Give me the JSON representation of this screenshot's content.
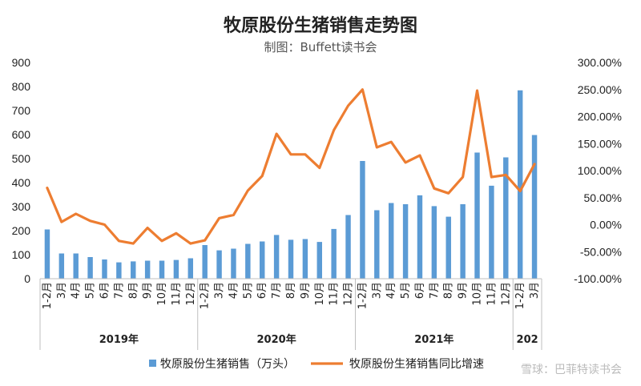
{
  "header": {
    "title": "牧原股份生猪销售走势图",
    "subtitle": "制图：Buffett读书会"
  },
  "watermark": "雪球：巴菲特读书会",
  "chart_data": {
    "type": "bar+line",
    "categories": [
      "1-2月",
      "3月",
      "4月",
      "5月",
      "6月",
      "7月",
      "8月",
      "9月",
      "10月",
      "11月",
      "12月",
      "1-2月",
      "3月",
      "4月",
      "5月",
      "6月",
      "7月",
      "8月",
      "9月",
      "10月",
      "11月",
      "12月",
      "1-2月",
      "3月",
      "4月",
      "5月",
      "6月",
      "7月",
      "8月",
      "9月",
      "10月",
      "11月",
      "12月",
      "1-2月",
      "3月"
    ],
    "year_groups": [
      {
        "label": "2019年",
        "start": 0,
        "end": 10
      },
      {
        "label": "2020年",
        "start": 11,
        "end": 21
      },
      {
        "label": "2021年",
        "start": 22,
        "end": 32
      },
      {
        "label": "202",
        "start": 33,
        "end": 34
      }
    ],
    "series": [
      {
        "name": "牧原股份生猪销售（万头）",
        "type": "bar",
        "axis": "left",
        "color": "#5b9bd5",
        "values": [
          205,
          105,
          105,
          90,
          80,
          68,
          72,
          75,
          75,
          78,
          85,
          140,
          118,
          125,
          145,
          155,
          182,
          162,
          165,
          153,
          207,
          265,
          490,
          285,
          315,
          310,
          347,
          302,
          258,
          310,
          525,
          387,
          505,
          784,
          598
        ]
      },
      {
        "name": "牧原股份生猪销售同比增速",
        "type": "line",
        "axis": "right",
        "color": "#ed7d31",
        "values": [
          68,
          5,
          20,
          7,
          0,
          -30,
          -35,
          -6,
          -30,
          -16,
          -35,
          -29,
          12,
          18,
          63,
          90,
          168,
          130,
          130,
          105,
          175,
          220,
          250,
          143,
          153,
          115,
          128,
          67,
          58,
          88,
          248,
          88,
          92,
          62,
          112
        ]
      }
    ],
    "y_left": {
      "min": 0,
      "max": 900,
      "ticks": [
        "0",
        "100",
        "200",
        "300",
        "400",
        "500",
        "600",
        "700",
        "800",
        "900"
      ]
    },
    "y_right": {
      "min": -100,
      "max": 300,
      "ticks": [
        "-100.00%",
        "-50.00%",
        "0.00%",
        "50.00%",
        "100.00%",
        "150.00%",
        "200.00%",
        "250.00%",
        "300.00%"
      ]
    },
    "legend_position": "bottom",
    "grid": false
  }
}
